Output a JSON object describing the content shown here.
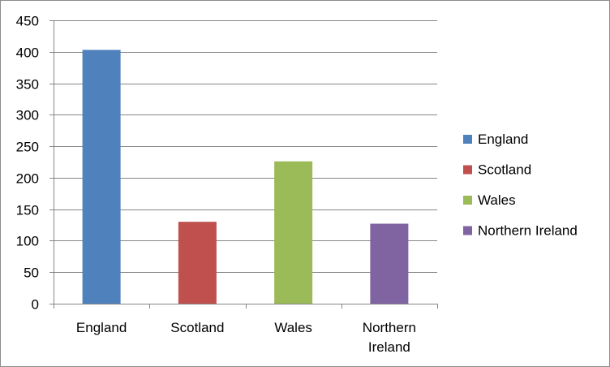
{
  "chart_data": {
    "type": "bar",
    "categories": [
      "England",
      "Scotland",
      "Wales",
      "Northern Ireland"
    ],
    "category_label_lines": [
      [
        "England"
      ],
      [
        "Scotland"
      ],
      [
        "Wales"
      ],
      [
        "Northern",
        "Ireland"
      ]
    ],
    "values": [
      403,
      130,
      226,
      127
    ],
    "colors": [
      "#4f81bd",
      "#c0504d",
      "#9bbb59",
      "#8064a2"
    ],
    "ylim": [
      0,
      450
    ],
    "yticks": [
      0,
      50,
      100,
      150,
      200,
      250,
      300,
      350,
      400,
      450
    ],
    "grid": true,
    "legend_position": "right",
    "legend": [
      "England",
      "Scotland",
      "Wales",
      "Northern Ireland"
    ],
    "title": "",
    "xlabel": "",
    "ylabel": ""
  }
}
